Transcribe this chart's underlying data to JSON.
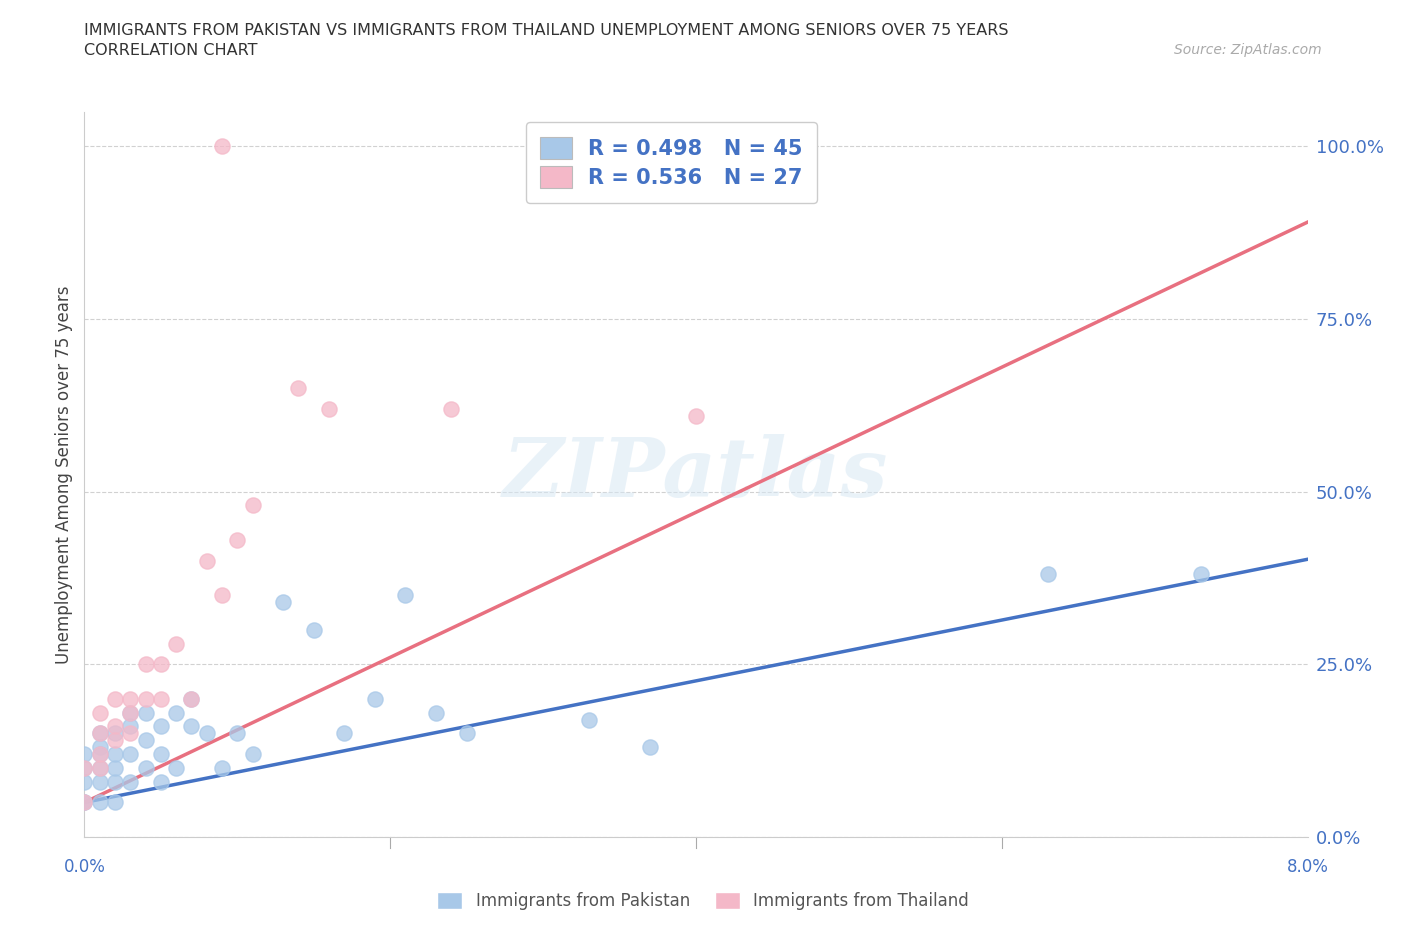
{
  "title_line1": "IMMIGRANTS FROM PAKISTAN VS IMMIGRANTS FROM THAILAND UNEMPLOYMENT AMONG SENIORS OVER 75 YEARS",
  "title_line2": "CORRELATION CHART",
  "source": "Source: ZipAtlas.com",
  "ylabel": "Unemployment Among Seniors over 75 years",
  "watermark": "ZIPatlas",
  "legend_pk": "R = 0.498   N = 45",
  "legend_th": "R = 0.536   N = 27",
  "legend_label_pk": "Immigrants from Pakistan",
  "legend_label_th": "Immigrants from Thailand",
  "color_pk": "#a8c8e8",
  "color_th": "#f4b8c8",
  "line_color_pk": "#4472c4",
  "line_color_th": "#e87080",
  "pk_x": [
    0.0,
    0.0,
    0.0,
    0.0,
    0.0,
    0.001,
    0.001,
    0.001,
    0.001,
    0.001,
    0.001,
    0.002,
    0.002,
    0.002,
    0.002,
    0.002,
    0.003,
    0.003,
    0.003,
    0.003,
    0.004,
    0.004,
    0.004,
    0.005,
    0.005,
    0.005,
    0.006,
    0.006,
    0.007,
    0.007,
    0.008,
    0.009,
    0.01,
    0.011,
    0.013,
    0.015,
    0.017,
    0.019,
    0.021,
    0.023,
    0.025,
    0.033,
    0.037,
    0.063,
    0.073
  ],
  "pk_y": [
    0.05,
    0.08,
    0.1,
    0.12,
    0.05,
    0.1,
    0.13,
    0.15,
    0.08,
    0.05,
    0.12,
    0.08,
    0.15,
    0.1,
    0.12,
    0.05,
    0.12,
    0.16,
    0.18,
    0.08,
    0.14,
    0.18,
    0.1,
    0.16,
    0.12,
    0.08,
    0.18,
    0.1,
    0.16,
    0.2,
    0.15,
    0.1,
    0.15,
    0.12,
    0.34,
    0.3,
    0.15,
    0.2,
    0.35,
    0.18,
    0.15,
    0.17,
    0.13,
    0.38,
    0.38
  ],
  "th_x": [
    0.0,
    0.0,
    0.001,
    0.001,
    0.001,
    0.001,
    0.002,
    0.002,
    0.002,
    0.003,
    0.003,
    0.003,
    0.004,
    0.004,
    0.005,
    0.005,
    0.006,
    0.007,
    0.008,
    0.009,
    0.01,
    0.011,
    0.014,
    0.016,
    0.024,
    0.04,
    0.009
  ],
  "th_y": [
    0.05,
    0.1,
    0.1,
    0.15,
    0.18,
    0.12,
    0.16,
    0.2,
    0.14,
    0.18,
    0.2,
    0.15,
    0.2,
    0.25,
    0.2,
    0.25,
    0.28,
    0.2,
    0.4,
    0.35,
    0.43,
    0.48,
    0.65,
    0.62,
    0.62,
    0.61,
    1.0
  ],
  "xlim": [
    0.0,
    0.08
  ],
  "ylim": [
    0.0,
    1.05
  ],
  "yticks": [
    0.0,
    0.25,
    0.5,
    0.75,
    1.0
  ],
  "yticklabels": [
    "0.0%",
    "25.0%",
    "50.0%",
    "75.0%",
    "100.0%"
  ],
  "pk_slope": 4.4,
  "pk_intercept": 0.05,
  "th_slope": 10.5,
  "th_intercept": 0.05
}
